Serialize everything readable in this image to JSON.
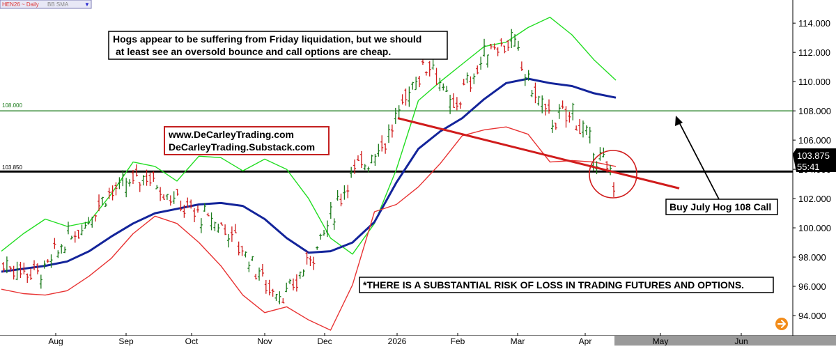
{
  "header": {
    "symbol_label": "HEN26 ~ Daily",
    "indicator_label": "BB SMA",
    "dropdown_glyph": "▼"
  },
  "chart_data": {
    "type": "ohlc",
    "instrument": "HEN26",
    "timeframe": "Daily",
    "ylim": [
      93.0,
      115.2
    ],
    "y_ticks": [
      94,
      96,
      98,
      100,
      102,
      104,
      106,
      108,
      110,
      112,
      114
    ],
    "y_tick_labels": [
      "94.000",
      "96.000",
      "98.000",
      "100.000",
      "102.000",
      "104.000",
      "106.000",
      "108.000",
      "110.000",
      "112.000",
      "114.000"
    ],
    "months": [
      "Aug",
      "Sep",
      "Oct",
      "Nov",
      "Dec",
      "2026",
      "Feb",
      "Mar",
      "Apr",
      "May",
      "Jun"
    ],
    "horizontal_lines": [
      {
        "label": "108.000",
        "value": 108.0,
        "color": "#1a7a1a"
      },
      {
        "label": "103.850",
        "value": 103.85,
        "color": "#000000"
      }
    ],
    "last_price_label": "103.875",
    "countdown_label": "55:41",
    "last_price": 103.875,
    "trendline": {
      "from": [
        0,
        107.5
      ],
      "to": [
        1,
        102.7
      ],
      "color": "#d01c1c"
    },
    "series": [
      {
        "name": "Upper band",
        "color": "#22dd22",
        "values": [
          98.4,
          99.6,
          100.6,
          100.1,
          100.4,
          102.3,
          104.5,
          104.2,
          103.2,
          104.9,
          104.8,
          103.9,
          104.7,
          104.0,
          102.0,
          99.3,
          98.2,
          100.3,
          104.0,
          108.7,
          110.0,
          111.2,
          112.4,
          112.7,
          113.7,
          114.4,
          113.2,
          111.5,
          110.1
        ]
      },
      {
        "name": "Middle band (SMA)",
        "color": "#13249a",
        "values": [
          97.0,
          97.2,
          97.4,
          97.7,
          98.4,
          99.4,
          100.3,
          101.0,
          101.3,
          101.6,
          101.7,
          101.5,
          100.6,
          99.3,
          98.3,
          98.4,
          99.0,
          100.4,
          103.1,
          105.4,
          106.6,
          107.5,
          108.8,
          109.9,
          110.2,
          109.9,
          109.7,
          109.2,
          108.9
        ]
      },
      {
        "name": "Lower band",
        "color": "#e83333",
        "values": [
          95.8,
          95.5,
          95.4,
          95.7,
          96.7,
          97.9,
          99.6,
          100.8,
          100.3,
          99.0,
          97.4,
          95.4,
          94.2,
          94.6,
          93.7,
          93.0,
          96.1,
          101.1,
          101.6,
          102.8,
          104.4,
          106.3,
          106.7,
          106.9,
          106.4,
          104.5,
          104.6,
          104.5,
          104.2
        ]
      }
    ],
    "price_path": [
      97.5,
      97.1,
      97.0,
      99.0,
      100.3,
      102.3,
      102.8,
      103.7,
      102.5,
      101.3,
      100.6,
      99.9,
      98.1,
      96.0,
      95.3,
      97.8,
      100.3,
      103.5,
      104.8,
      106.4,
      109.6,
      111.6,
      108.0,
      110.2,
      112.5,
      112.7,
      109.4,
      107.3,
      107.9,
      105.2,
      103.4
    ]
  },
  "annotations": {
    "commentary_line1": "Hogs appear to be suffering from Friday liquidation, but we should",
    "commentary_line2": "at least see an oversold bounce and call options are cheap.",
    "website_line1": "www.DeCarleyTrading.com",
    "website_line2": "DeCarleyTrading.Substack.com",
    "trade_label": "Buy July Hog 108 Call",
    "disclaimer": "*THERE IS A SUBSTANTIAL RISK OF LOSS IN TRADING FUTURES AND OPTIONS."
  },
  "colors": {
    "up_bar": "#1a7a1a",
    "down_bar": "#d01c1c",
    "future_band": "#9a9a9a",
    "nav_button": "#f28c1a"
  },
  "icons": {
    "nav_button": "arrow-right-icon"
  }
}
